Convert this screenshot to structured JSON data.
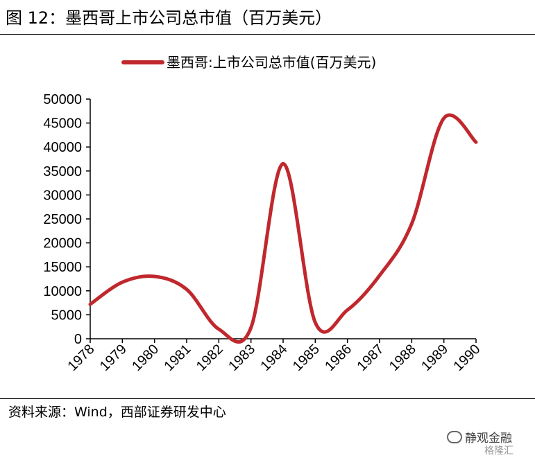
{
  "figure": {
    "title": "图 12：墨西哥上市公司总市值（百万美元）",
    "source": "资料来源：Wind，西部证券研发中心",
    "watermark_main": "静观金融",
    "watermark_sub": "格隆汇"
  },
  "colors": {
    "series": "#C0282D",
    "axis": "#000000"
  },
  "chart_data": {
    "type": "line",
    "title": "",
    "xlabel": "",
    "ylabel": "",
    "legend_position": "top-center",
    "categories": [
      "1978",
      "1979",
      "1980",
      "1981",
      "1982",
      "1983",
      "1984",
      "1985",
      "1986",
      "1987",
      "1988",
      "1989",
      "1990"
    ],
    "ylim": [
      0,
      50000
    ],
    "yticks": [
      0,
      5000,
      10000,
      15000,
      20000,
      25000,
      30000,
      35000,
      40000,
      45000,
      50000
    ],
    "series": [
      {
        "name": "墨西哥:上市公司总市值(百万美元)",
        "values": [
          7200,
          11800,
          13000,
          10300,
          2000,
          2300,
          36500,
          3400,
          6000,
          13200,
          24000,
          46000,
          41000
        ]
      }
    ]
  }
}
